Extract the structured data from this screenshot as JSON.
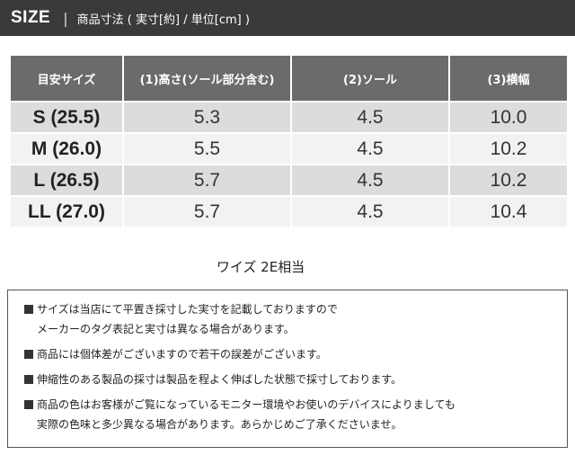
{
  "header": {
    "size_label": "SIZE",
    "separator": "|",
    "subtitle": "商品寸法 ( 実寸[約] / 単位[cm] )"
  },
  "table": {
    "headers": [
      "目安サイズ",
      "(1)高さ(ソール部分含む)",
      "(2)ソール",
      "(3)横幅"
    ],
    "rows": [
      {
        "size": "S (25.5)",
        "height": "5.3",
        "sole": "4.5",
        "width": "10.0"
      },
      {
        "size": "M (26.0)",
        "height": "5.5",
        "sole": "4.5",
        "width": "10.2"
      },
      {
        "size": "L (26.5)",
        "height": "5.7",
        "sole": "4.5",
        "width": "10.2"
      },
      {
        "size": "LL (27.0)",
        "height": "5.7",
        "sole": "4.5",
        "width": "10.4"
      }
    ]
  },
  "width_note": "ワイズ 2E相当",
  "notes": [
    {
      "lines": [
        "サイズは当店にて平置き採寸した実寸を記載しておりますので",
        "メーカーのタグ表記と実寸は異なる場合があります。"
      ]
    },
    {
      "lines": [
        "商品には個体差がございますので若干の誤差がございます。"
      ]
    },
    {
      "lines": [
        "伸縮性のある製品の採寸は製品を程よく伸ばした状態で採寸しております。"
      ]
    },
    {
      "lines": [
        "商品の色はお客様がご覧になっているモニター環境やお使いのデバイスによりましても",
        "実際の色味と多少異なる場合があります。あらかじめご了承くださいませ。"
      ]
    }
  ],
  "colors": {
    "header_bg": "#3a3a3a",
    "table_header_bg": "#6b6b6b",
    "row_odd": "#dcdcdc",
    "row_even": "#f2f2f2"
  },
  "icons": {
    "bullet": "square-bullet-icon"
  }
}
